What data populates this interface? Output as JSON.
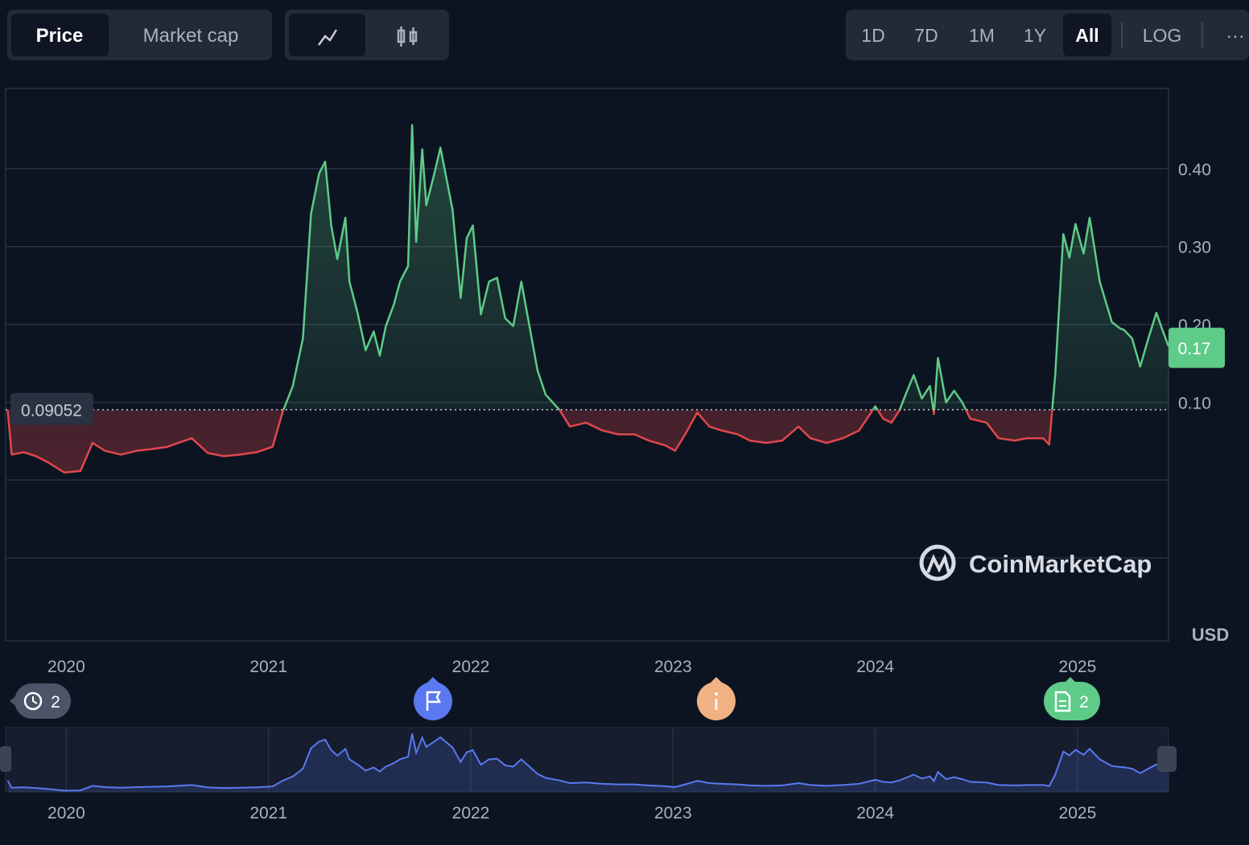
{
  "toolbar": {
    "tabs": [
      "Price",
      "Market cap"
    ],
    "ranges": [
      "1D",
      "7D",
      "1M",
      "1Y",
      "All"
    ],
    "scale": "LOG",
    "more": "···"
  },
  "chart_data": {
    "type": "line",
    "currency": "USD",
    "watermark": "CoinMarketCap",
    "baseline": 0.09052,
    "current_price": 0.17,
    "up_color": "#5ecb88",
    "down_color": "#e0474c",
    "navigator_color": "#5a78f0",
    "xlim": [
      2019.7,
      2025.45
    ],
    "xticks": [
      2020,
      2021,
      2022,
      2023,
      2024,
      2025
    ],
    "ylim": [
      -0.206,
      0.503
    ],
    "yticks": [
      {
        "value": 0.1,
        "label": "0.10"
      },
      {
        "value": 0.2,
        "label": "0.20"
      },
      {
        "value": 0.3,
        "label": "0.30"
      },
      {
        "value": 0.4,
        "label": "0.40"
      }
    ],
    "grid": true,
    "x": [
      2019.71,
      2019.73,
      2019.79,
      2019.85,
      2019.91,
      2019.99,
      2020.07,
      2020.13,
      2020.19,
      2020.27,
      2020.35,
      2020.42,
      2020.5,
      2020.62,
      2020.7,
      2020.78,
      2020.86,
      2020.94,
      2021.02,
      2021.07,
      2021.12,
      2021.17,
      2021.21,
      2021.25,
      2021.28,
      2021.31,
      2021.34,
      2021.38,
      2021.4,
      2021.44,
      2021.48,
      2021.52,
      2021.55,
      2021.58,
      2021.62,
      2021.65,
      2021.69,
      2021.71,
      2021.73,
      2021.76,
      2021.78,
      2021.82,
      2021.85,
      2021.91,
      2021.95,
      2021.98,
      2022.01,
      2022.05,
      2022.09,
      2022.13,
      2022.17,
      2022.21,
      2022.25,
      2022.29,
      2022.33,
      2022.37,
      2022.44,
      2022.49,
      2022.57,
      2022.65,
      2022.73,
      2022.81,
      2022.88,
      2022.96,
      2023.01,
      2023.06,
      2023.12,
      2023.18,
      2023.24,
      2023.32,
      2023.38,
      2023.46,
      2023.54,
      2023.62,
      2023.68,
      2023.76,
      2023.84,
      2023.92,
      2024.0,
      2024.04,
      2024.08,
      2024.12,
      2024.15,
      2024.19,
      2024.23,
      2024.27,
      2024.29,
      2024.31,
      2024.35,
      2024.39,
      2024.43,
      2024.47,
      2024.55,
      2024.61,
      2024.69,
      2024.75,
      2024.83,
      2024.86,
      2024.89,
      2024.93,
      2024.96,
      2024.99,
      2025.03,
      2025.06,
      2025.11,
      2025.17,
      2025.21,
      2025.23,
      2025.27,
      2025.31,
      2025.35,
      2025.39,
      2025.42,
      2025.45
    ],
    "values": [
      0.09,
      0.033,
      0.036,
      0.031,
      0.023,
      0.01,
      0.012,
      0.048,
      0.038,
      0.033,
      0.038,
      0.04,
      0.043,
      0.054,
      0.035,
      0.031,
      0.033,
      0.036,
      0.043,
      0.088,
      0.121,
      0.182,
      0.342,
      0.394,
      0.409,
      0.327,
      0.284,
      0.337,
      0.255,
      0.215,
      0.167,
      0.191,
      0.16,
      0.198,
      0.226,
      0.255,
      0.275,
      0.456,
      0.306,
      0.425,
      0.353,
      0.394,
      0.427,
      0.347,
      0.234,
      0.311,
      0.327,
      0.213,
      0.255,
      0.26,
      0.208,
      0.198,
      0.255,
      0.198,
      0.141,
      0.11,
      0.09,
      0.069,
      0.074,
      0.064,
      0.059,
      0.059,
      0.051,
      0.045,
      0.038,
      0.059,
      0.087,
      0.069,
      0.064,
      0.059,
      0.051,
      0.048,
      0.051,
      0.069,
      0.054,
      0.048,
      0.054,
      0.064,
      0.095,
      0.079,
      0.074,
      0.09,
      0.11,
      0.135,
      0.105,
      0.121,
      0.085,
      0.157,
      0.1,
      0.115,
      0.1,
      0.079,
      0.074,
      0.054,
      0.051,
      0.054,
      0.054,
      0.046,
      0.136,
      0.316,
      0.286,
      0.329,
      0.291,
      0.337,
      0.255,
      0.203,
      0.195,
      0.193,
      0.182,
      0.146,
      0.182,
      0.215,
      0.193,
      0.172
    ],
    "events": [
      {
        "count": 2
      },
      {},
      {},
      {
        "count": 2
      }
    ]
  }
}
